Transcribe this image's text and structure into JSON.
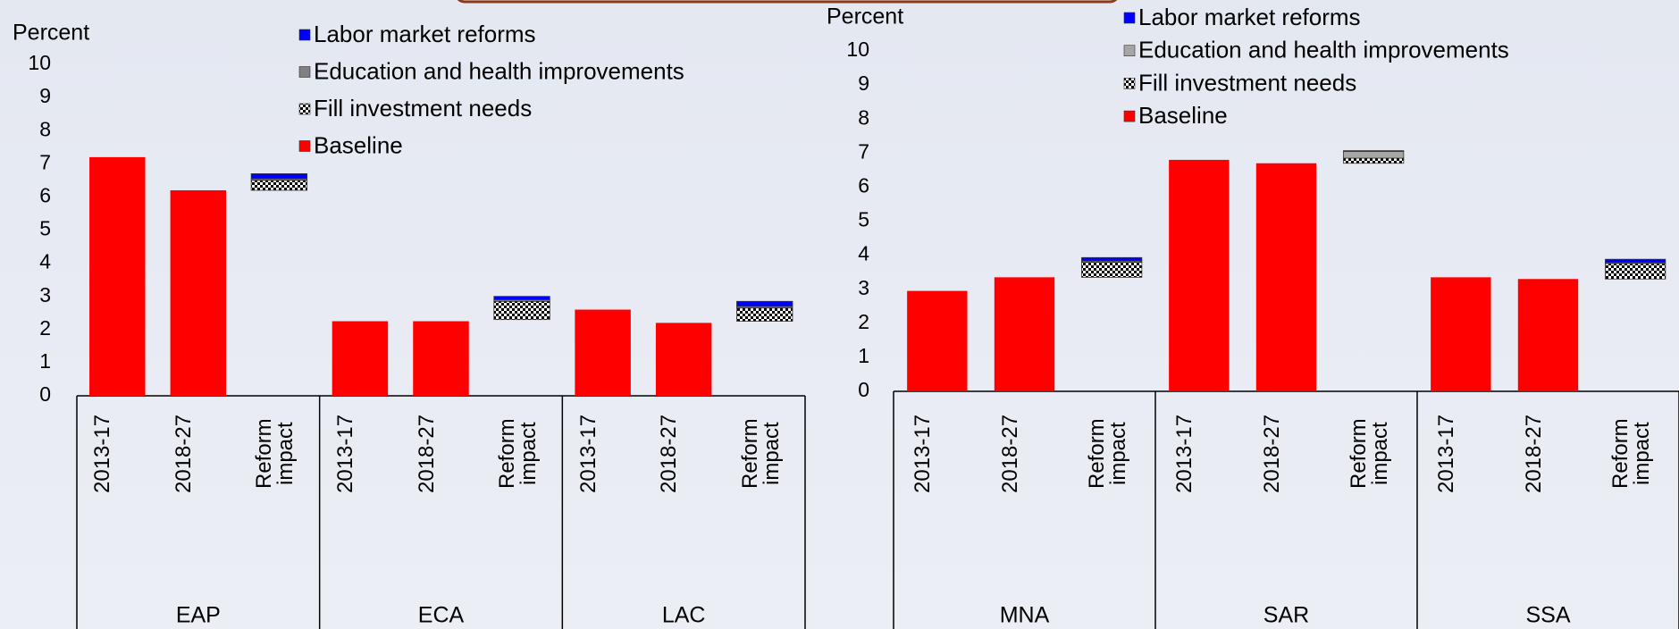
{
  "chart_data": [
    {
      "type": "bar",
      "stacked": true,
      "ylabel": "Percent",
      "groups": [
        "EAP",
        "ECA",
        "LAC"
      ],
      "categories": [
        "2013-17",
        "2018-27",
        "Reform impact",
        "2013-17",
        "2018-27",
        "Reform impact",
        "2013-17",
        "2018-27",
        "Reform impact"
      ],
      "series": [
        {
          "name": "Labor market reforms",
          "color": "#0000ff",
          "values": [
            null,
            null,
            0.15,
            null,
            null,
            0.1,
            null,
            null,
            0.15
          ]
        },
        {
          "name": "Education and health improvements",
          "color": "#808080",
          "values": [
            null,
            null,
            0.05,
            null,
            null,
            0.05,
            null,
            null,
            0.05
          ]
        },
        {
          "name": "Fill investment needs",
          "color": "hatch",
          "values": [
            null,
            null,
            0.3,
            null,
            null,
            0.55,
            null,
            null,
            0.4
          ]
        },
        {
          "name": "Baseline",
          "color": "#ff0000",
          "values": [
            7.2,
            6.2,
            6.2,
            2.25,
            2.25,
            2.3,
            2.6,
            2.2,
            2.25
          ]
        }
      ],
      "ylim": [
        0,
        10
      ],
      "yticks": [
        0,
        1,
        2,
        3,
        4,
        5,
        6,
        7,
        8,
        9,
        10
      ]
    },
    {
      "type": "bar",
      "stacked": true,
      "ylabel": "Percent",
      "groups": [
        "MNA",
        "SAR",
        "SSA"
      ],
      "categories": [
        "2013-17",
        "2018-27",
        "Reform impact",
        "2013-17",
        "2018-27",
        "Reform impact",
        "2013-17",
        "2018-27",
        "Reform impact"
      ],
      "series": [
        {
          "name": "Labor market reforms",
          "color": "#0000ff",
          "values": [
            null,
            null,
            0.1,
            null,
            null,
            0.02,
            null,
            null,
            0.1
          ]
        },
        {
          "name": "Education and health improvements",
          "color": "#a6a6a6",
          "values": [
            null,
            null,
            0.03,
            null,
            null,
            0.2,
            null,
            null,
            0.03
          ]
        },
        {
          "name": "Fill investment needs",
          "color": "hatch",
          "values": [
            null,
            null,
            0.45,
            null,
            null,
            0.15,
            null,
            null,
            0.45
          ]
        },
        {
          "name": "Baseline",
          "color": "#ff0000",
          "values": [
            2.95,
            3.35,
            3.35,
            6.8,
            6.7,
            6.7,
            3.35,
            3.3,
            3.3
          ]
        }
      ],
      "ylim": [
        0,
        10
      ],
      "yticks": [
        0,
        1,
        2,
        3,
        4,
        5,
        6,
        7,
        8,
        9,
        10
      ]
    }
  ]
}
